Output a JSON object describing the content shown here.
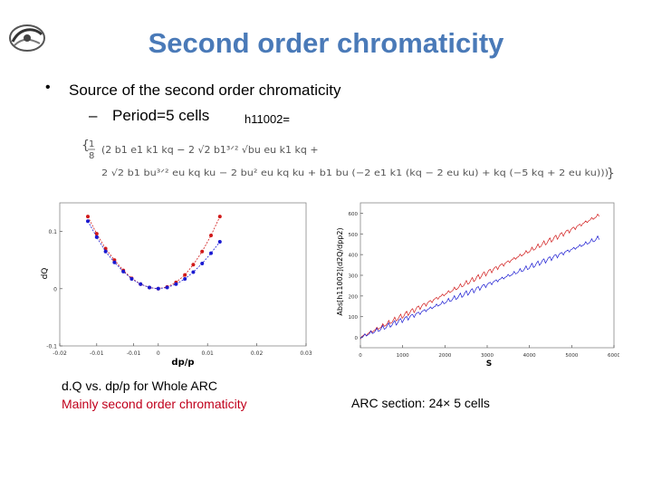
{
  "slide": {
    "title": "Second order chromaticity",
    "bullet": "Source of the second order chromaticity",
    "sub_bullet": "Period=5 cells",
    "formula_name": "h11002=",
    "formula_line1": "(2 b1 e1 k1 kq − 2 √2 b1³ᐟ² √bu eu k1 kq +",
    "formula_line2": "2 √2 b1 bu³ᐟ² eu kq ku − 2 bu² eu kq ku + b1 bu (−2 e1 k1 (kq − 2 eu ku) + kq (−5 kq + 2 eu ku)))",
    "formula_factor_num": "1",
    "formula_factor_den": "8",
    "caption_left_1": "d.Q vs. dp/p for Whole ARC",
    "caption_left_2": "Mainly second order chromaticity",
    "caption_right": "ARC section: 24× 5 cells"
  },
  "chart_data": [
    {
      "type": "scatter",
      "xlabel": "dp/p",
      "ylabel": "dQ",
      "xlim": [
        -0.02,
        0.03
      ],
      "ylim": [
        -0.1,
        0.15
      ],
      "x_ticks": [
        "-0.02",
        "-0.01",
        "-0.01",
        "0",
        "0.01",
        "0.02",
        "0.03"
      ],
      "x_tick_values": [
        -0.02,
        -0.0125,
        -0.005,
        0,
        0.01,
        0.02,
        0.03
      ],
      "y_ticks": [
        "0.1",
        "0",
        "-0.1"
      ],
      "y_tick_values": [
        0.1,
        0,
        -0.1
      ],
      "grid": false,
      "series": [
        {
          "color": "#d11a1a",
          "x": [
            -0.0143,
            -0.0125,
            -0.0107,
            -0.0089,
            -0.0071,
            -0.0054,
            -0.0036,
            -0.0018,
            0,
            0.0018,
            0.0036,
            0.0054,
            0.0071,
            0.0089,
            0.0107,
            0.0125
          ],
          "y": [
            0.126,
            0.096,
            0.07,
            0.05,
            0.032,
            0.018,
            0.008,
            0.002,
            0,
            0.003,
            0.011,
            0.024,
            0.042,
            0.065,
            0.093,
            0.126
          ]
        },
        {
          "color": "#1a1ad1",
          "x": [
            -0.0143,
            -0.0125,
            -0.0107,
            -0.0089,
            -0.0071,
            -0.0054,
            -0.0036,
            -0.0018,
            0,
            0.0018,
            0.0036,
            0.0054,
            0.0071,
            0.0089,
            0.0107,
            0.0125
          ],
          "y": [
            0.118,
            0.09,
            0.065,
            0.046,
            0.03,
            0.017,
            0.008,
            0.002,
            0,
            0.002,
            0.008,
            0.017,
            0.029,
            0.044,
            0.062,
            0.082
          ]
        }
      ]
    },
    {
      "type": "line",
      "xlabel": "S",
      "ylabel": "Abs[h11002](d2Q/dpp2)",
      "xlim": [
        0,
        6000
      ],
      "ylim": [
        -50,
        650
      ],
      "x_ticks": [
        "0",
        "1000",
        "2000",
        "3000",
        "4000",
        "5000",
        "6000"
      ],
      "x_tick_values": [
        0,
        1000,
        2000,
        3000,
        4000,
        5000,
        6000
      ],
      "y_ticks": [
        "0",
        "100",
        "200",
        "300",
        "400",
        "500",
        "600"
      ],
      "y_tick_values": [
        0,
        100,
        200,
        300,
        400,
        500,
        600
      ],
      "grid": false,
      "series": [
        {
          "color": "#d11a1a",
          "x": [
            0,
            5650
          ],
          "y": [
            0,
            590
          ]
        },
        {
          "color": "#1a1ad1",
          "x": [
            0,
            5650
          ],
          "y": [
            0,
            480
          ]
        }
      ]
    }
  ]
}
